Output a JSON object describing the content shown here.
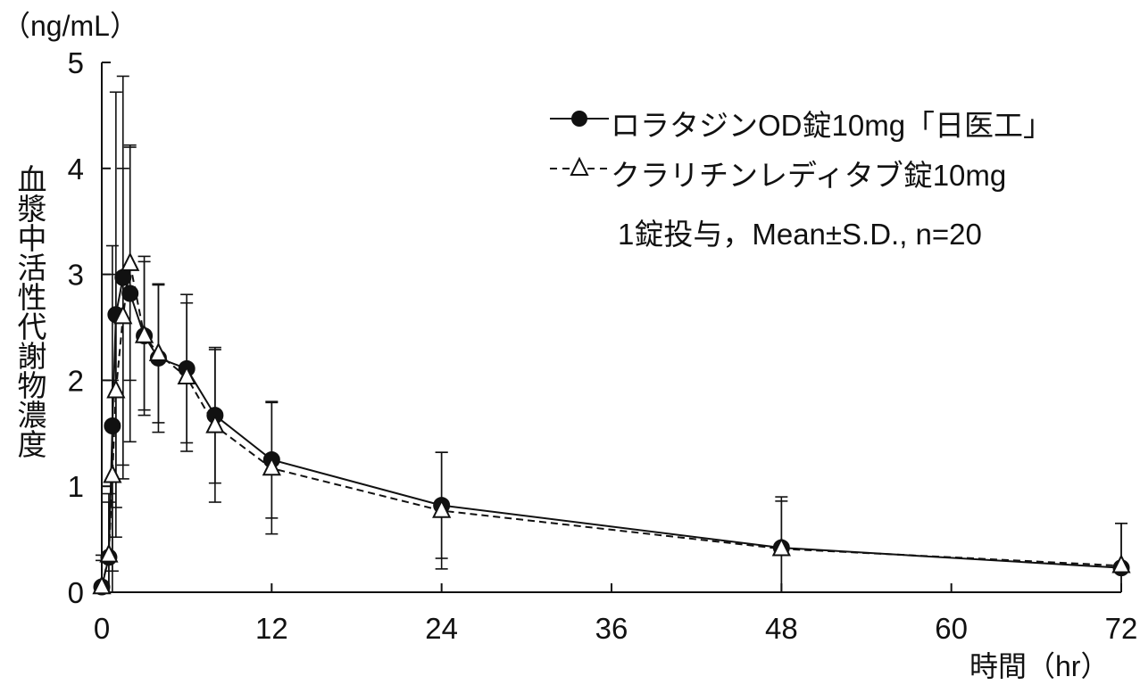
{
  "chart_data": {
    "type": "line",
    "unit_label": "（ng/mL）",
    "ylabel": "血漿中活性代謝物濃度",
    "xlabel": "時間（hr）",
    "xlim": [
      0,
      72
    ],
    "ylim": [
      0,
      5
    ],
    "x_ticks": [
      "0",
      "12",
      "24",
      "36",
      "48",
      "60",
      "72"
    ],
    "y_ticks": [
      "0",
      "1",
      "2",
      "3",
      "4",
      "5"
    ],
    "grid": false,
    "legend_position": "top-right",
    "note": "1錠投与，Mean±S.D., n=20",
    "series": [
      {
        "name": "ロラタジンOD錠10mg「日医工」",
        "marker": "filled-circle",
        "line": "solid",
        "color": "#111111",
        "x": [
          0,
          0.5,
          0.75,
          1,
          1.5,
          2,
          3,
          4,
          6,
          8,
          12,
          24,
          48,
          72
        ],
        "y": [
          0.05,
          0.33,
          1.57,
          2.62,
          2.97,
          2.82,
          2.42,
          2.21,
          2.11,
          1.67,
          1.25,
          0.82,
          0.42,
          0.23
        ],
        "sd": [
          0.3,
          0.6,
          1.7,
          2.1,
          1.9,
          1.4,
          0.75,
          0.7,
          0.7,
          0.64,
          0.55,
          0.5,
          0.48,
          0.42
        ]
      },
      {
        "name": "クラリチンレディタブ錠10mg",
        "marker": "open-triangle",
        "line": "dashed",
        "color": "#111111",
        "x": [
          0,
          0.5,
          0.75,
          1,
          1.5,
          2,
          3,
          4,
          6,
          8,
          12,
          24,
          48,
          72
        ],
        "y": [
          0.05,
          0.35,
          1.1,
          1.9,
          2.6,
          3.1,
          2.42,
          2.25,
          2.03,
          1.57,
          1.17,
          0.77,
          0.41,
          0.25
        ],
        "sd": [
          0.25,
          0.5,
          0.9,
          1.1,
          1.4,
          1.1,
          0.7,
          0.65,
          0.7,
          0.72,
          0.62,
          0.55,
          0.45,
          0.4
        ]
      }
    ]
  }
}
